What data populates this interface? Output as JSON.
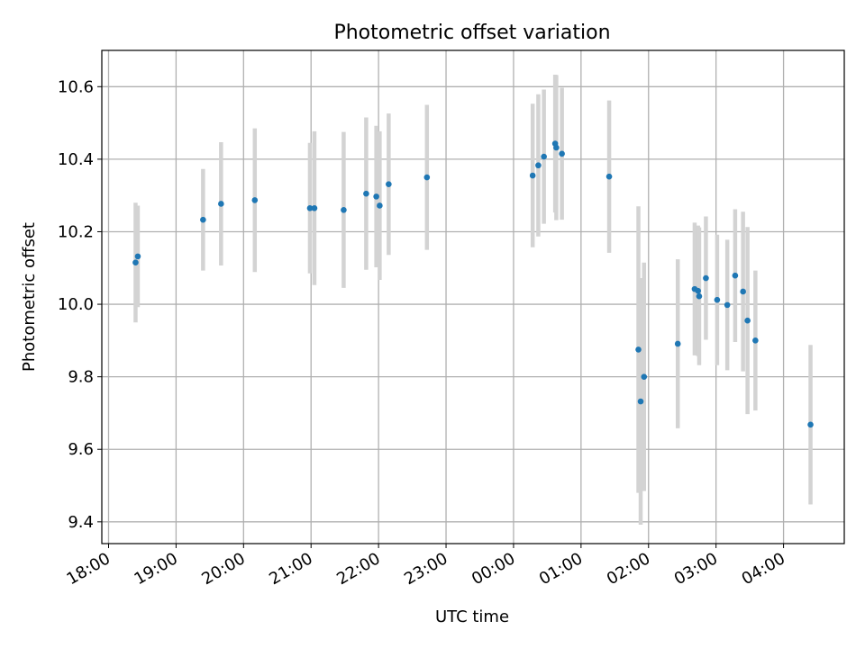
{
  "chart_data": {
    "type": "scatter",
    "title": "Photometric offset variation",
    "xlabel": "UTC time",
    "ylabel": "Photometric offset",
    "x_axis": {
      "unit": "hours since 18:00 UTC",
      "lim": [
        -0.1,
        10.9
      ],
      "ticks": [
        0,
        1,
        2,
        3,
        4,
        5,
        6,
        7,
        8,
        9,
        10
      ],
      "tick_labels": [
        "18:00",
        "19:00",
        "20:00",
        "21:00",
        "22:00",
        "23:00",
        "00:00",
        "01:00",
        "02:00",
        "03:00",
        "04:00"
      ]
    },
    "y_axis": {
      "lim": [
        9.34,
        10.7
      ],
      "ticks": [
        9.4,
        9.6,
        9.8,
        10.0,
        10.2,
        10.4,
        10.6
      ],
      "tick_labels": [
        "9.4",
        "9.6",
        "9.8",
        "10.0",
        "10.2",
        "10.4",
        "10.6"
      ]
    },
    "grid": true,
    "colors": {
      "point": "#1f77b4",
      "errorbar": "#d3d3d3",
      "grid": "#b0b0b0",
      "axis": "#000000"
    },
    "points": [
      {
        "time": "18:24",
        "y": 10.115,
        "err": 0.165
      },
      {
        "time": "18:26",
        "y": 10.132,
        "err": 0.14
      },
      {
        "time": "19:24",
        "y": 10.233,
        "err": 0.14
      },
      {
        "time": "19:40",
        "y": 10.277,
        "err": 0.17
      },
      {
        "time": "20:10",
        "y": 10.287,
        "err": 0.198
      },
      {
        "time": "20:59",
        "y": 10.265,
        "err": 0.18
      },
      {
        "time": "21:03",
        "y": 10.265,
        "err": 0.212
      },
      {
        "time": "21:29",
        "y": 10.26,
        "err": 0.215
      },
      {
        "time": "21:49",
        "y": 10.305,
        "err": 0.21
      },
      {
        "time": "21:58",
        "y": 10.297,
        "err": 0.195
      },
      {
        "time": "22:01",
        "y": 10.272,
        "err": 0.205
      },
      {
        "time": "22:09",
        "y": 10.331,
        "err": 0.195
      },
      {
        "time": "22:43",
        "y": 10.35,
        "err": 0.2
      },
      {
        "time": "00:17",
        "y": 10.355,
        "err": 0.198
      },
      {
        "time": "00:22",
        "y": 10.383,
        "err": 0.196
      },
      {
        "time": "00:27",
        "y": 10.407,
        "err": 0.185
      },
      {
        "time": "00:37",
        "y": 10.443,
        "err": 0.19
      },
      {
        "time": "00:38",
        "y": 10.432,
        "err": 0.2
      },
      {
        "time": "00:43",
        "y": 10.415,
        "err": 0.182
      },
      {
        "time": "01:25",
        "y": 10.352,
        "err": 0.21
      },
      {
        "time": "01:51",
        "y": 9.875,
        "err": 0.395
      },
      {
        "time": "01:53",
        "y": 9.732,
        "err": 0.34
      },
      {
        "time": "01:56",
        "y": 9.8,
        "err": 0.315
      },
      {
        "time": "02:26",
        "y": 9.891,
        "err": 0.233
      },
      {
        "time": "02:41",
        "y": 10.042,
        "err": 0.183
      },
      {
        "time": "02:44",
        "y": 10.037,
        "err": 0.18
      },
      {
        "time": "02:45",
        "y": 10.022,
        "err": 0.19
      },
      {
        "time": "02:51",
        "y": 10.072,
        "err": 0.17
      },
      {
        "time": "03:01",
        "y": 10.012,
        "err": 0.18
      },
      {
        "time": "03:10",
        "y": 9.998,
        "err": 0.18
      },
      {
        "time": "03:17",
        "y": 10.079,
        "err": 0.183
      },
      {
        "time": "03:24",
        "y": 10.035,
        "err": 0.22
      },
      {
        "time": "03:28",
        "y": 9.955,
        "err": 0.258
      },
      {
        "time": "03:35",
        "y": 9.9,
        "err": 0.193
      },
      {
        "time": "04:24",
        "y": 9.668,
        "err": 0.22
      }
    ]
  }
}
